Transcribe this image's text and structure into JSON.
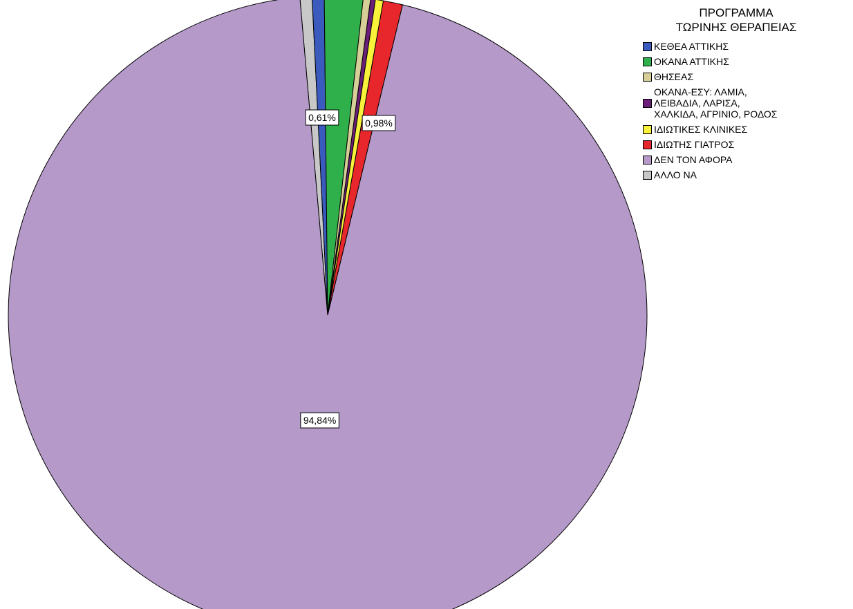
{
  "chart_data": {
    "type": "pie",
    "legend_title": "ΠΡΟΓΡΑΜΜΑ ΤΩΡΙΝΗΣ ΘΕΡΑΠΕΙΑΣ",
    "legend_title_lines": [
      "ΠΡΟΓΡΑΜΜΑ",
      "ΤΩΡΙΝΗΣ ΘΕΡΑΠΕΙΑΣ"
    ],
    "legend_position": "top-right",
    "start_angle_deg": -5,
    "direction": "clockwise",
    "slices": [
      {
        "label": "ΑΛΛΟ ΝΑ",
        "value": 0.61,
        "color": "#c8c8c8",
        "data_label": "0,61%"
      },
      {
        "label": "ΚΕΘΕΑ ΑΤΤΙΚΗΣ",
        "value": 0.61,
        "color": "#3a5bbd",
        "data_label": ""
      },
      {
        "label": "ΟΚΑΝΑ ΑΤΤΙΚΗΣ",
        "value": 1.95,
        "color": "#2fb04a",
        "data_label": ""
      },
      {
        "label": "ΘΗΣΕΑΣ",
        "value": 0.37,
        "color": "#d7cf98",
        "data_label": ""
      },
      {
        "label": "ΟΚΑΝΑ-ΕΣΥ: ΛΑΜΙΑ,\nΛΕΙΒΑΔΙΑ, ΛΑΡΙΣΑ,\nΧΑΛΚΙΔΑ, ΑΓΡΙΝΙΟ, ΡΟΔΟΣ",
        "value": 0.24,
        "color": "#6a1e78",
        "data_label": ""
      },
      {
        "label": "ΙΔΙΩΤΙΚΕΣ ΚΛΙΝΙΚΕΣ",
        "value": 0.4,
        "color": "#f8f23a",
        "data_label": ""
      },
      {
        "label": "ΙΔΙΩΤΗΣ ΓΙΑΤΡΟΣ",
        "value": 0.98,
        "color": "#e8272c",
        "data_label": "0,98%"
      },
      {
        "label": "ΔΕΝ ΤΟΝ ΑΦΟΡΑ",
        "value": 94.84,
        "color": "#b59ac9",
        "data_label": "94,84%"
      }
    ],
    "legend_order": [
      1,
      2,
      3,
      4,
      5,
      6,
      7,
      0
    ]
  }
}
